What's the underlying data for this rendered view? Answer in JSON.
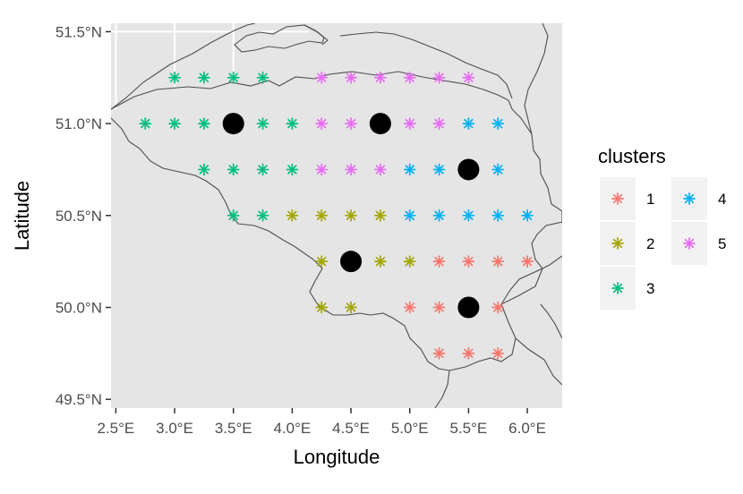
{
  "chart_data": {
    "type": "scatter",
    "xlabel": "Longitude",
    "ylabel": "Latitude",
    "xlim": [
      2.47,
      6.33
    ],
    "ylim": [
      49.48,
      51.57
    ],
    "x_ticks": [
      {
        "value": 2.5,
        "label": "2.5°E"
      },
      {
        "value": 3.0,
        "label": "3.0°E"
      },
      {
        "value": 3.5,
        "label": "3.5°E"
      },
      {
        "value": 4.0,
        "label": "4.0°E"
      },
      {
        "value": 4.5,
        "label": "4.5°E"
      },
      {
        "value": 5.0,
        "label": "5.0°E"
      },
      {
        "value": 5.5,
        "label": "5.5°E"
      },
      {
        "value": 6.0,
        "label": "6.0°E"
      }
    ],
    "y_ticks": [
      {
        "value": 49.5,
        "label": "49.5°N"
      },
      {
        "value": 50.0,
        "label": "50.0°N"
      },
      {
        "value": 50.5,
        "label": "50.5°N"
      },
      {
        "value": 51.0,
        "label": "51.0°N"
      },
      {
        "value": 51.5,
        "label": "51.5°N"
      }
    ],
    "grid": true,
    "legend": {
      "title": "clusters",
      "position": "right",
      "entries": [
        {
          "label": "1",
          "color": "#F8766D"
        },
        {
          "label": "2",
          "color": "#A3A500"
        },
        {
          "label": "3",
          "color": "#00BF7D"
        },
        {
          "label": "4",
          "color": "#00B0F6"
        },
        {
          "label": "5",
          "color": "#E76BF3"
        }
      ]
    },
    "series": [
      {
        "name": "1",
        "color": "#F8766D",
        "points": [
          [
            5.25,
            50.25
          ],
          [
            5.5,
            50.25
          ],
          [
            5.75,
            50.25
          ],
          [
            6.0,
            50.25
          ],
          [
            5.0,
            50.0
          ],
          [
            5.25,
            50.0
          ],
          [
            5.75,
            50.0
          ],
          [
            5.25,
            49.75
          ],
          [
            5.5,
            49.75
          ],
          [
            5.75,
            49.75
          ]
        ]
      },
      {
        "name": "2",
        "color": "#A3A500",
        "points": [
          [
            4.0,
            50.5
          ],
          [
            4.25,
            50.5
          ],
          [
            4.5,
            50.5
          ],
          [
            4.75,
            50.5
          ],
          [
            4.25,
            50.25
          ],
          [
            4.75,
            50.25
          ],
          [
            5.0,
            50.25
          ],
          [
            4.25,
            50.0
          ],
          [
            4.5,
            50.0
          ]
        ]
      },
      {
        "name": "3",
        "color": "#00BF7D",
        "points": [
          [
            3.0,
            51.25
          ],
          [
            3.25,
            51.25
          ],
          [
            3.5,
            51.25
          ],
          [
            3.75,
            51.25
          ],
          [
            2.75,
            51.0
          ],
          [
            3.0,
            51.0
          ],
          [
            3.25,
            51.0
          ],
          [
            3.75,
            51.0
          ],
          [
            4.0,
            51.0
          ],
          [
            3.25,
            50.75
          ],
          [
            3.5,
            50.75
          ],
          [
            3.75,
            50.75
          ],
          [
            4.0,
            50.75
          ],
          [
            3.5,
            50.5
          ],
          [
            3.75,
            50.5
          ]
        ]
      },
      {
        "name": "4",
        "color": "#00B0F6",
        "points": [
          [
            5.5,
            51.0
          ],
          [
            5.75,
            51.0
          ],
          [
            5.0,
            50.75
          ],
          [
            5.25,
            50.75
          ],
          [
            5.75,
            50.75
          ],
          [
            5.0,
            50.5
          ],
          [
            5.25,
            50.5
          ],
          [
            5.5,
            50.5
          ],
          [
            5.75,
            50.5
          ],
          [
            6.0,
            50.5
          ]
        ]
      },
      {
        "name": "5",
        "color": "#E76BF3",
        "points": [
          [
            4.25,
            51.25
          ],
          [
            4.5,
            51.25
          ],
          [
            4.75,
            51.25
          ],
          [
            5.0,
            51.25
          ],
          [
            5.25,
            51.25
          ],
          [
            5.5,
            51.25
          ],
          [
            4.25,
            51.0
          ],
          [
            4.5,
            51.0
          ],
          [
            5.0,
            51.0
          ],
          [
            5.25,
            51.0
          ],
          [
            4.25,
            50.75
          ],
          [
            4.5,
            50.75
          ],
          [
            4.75,
            50.75
          ]
        ]
      }
    ],
    "centroids": {
      "color": "#000000",
      "points": [
        [
          3.5,
          51.0
        ],
        [
          4.75,
          51.0
        ],
        [
          5.5,
          50.75
        ],
        [
          4.5,
          50.25
        ],
        [
          5.5,
          50.0
        ]
      ]
    },
    "map": {
      "background": "#e5e5e5",
      "gridline_color": "#ffffff",
      "border_color": "#4d4d4d"
    }
  }
}
